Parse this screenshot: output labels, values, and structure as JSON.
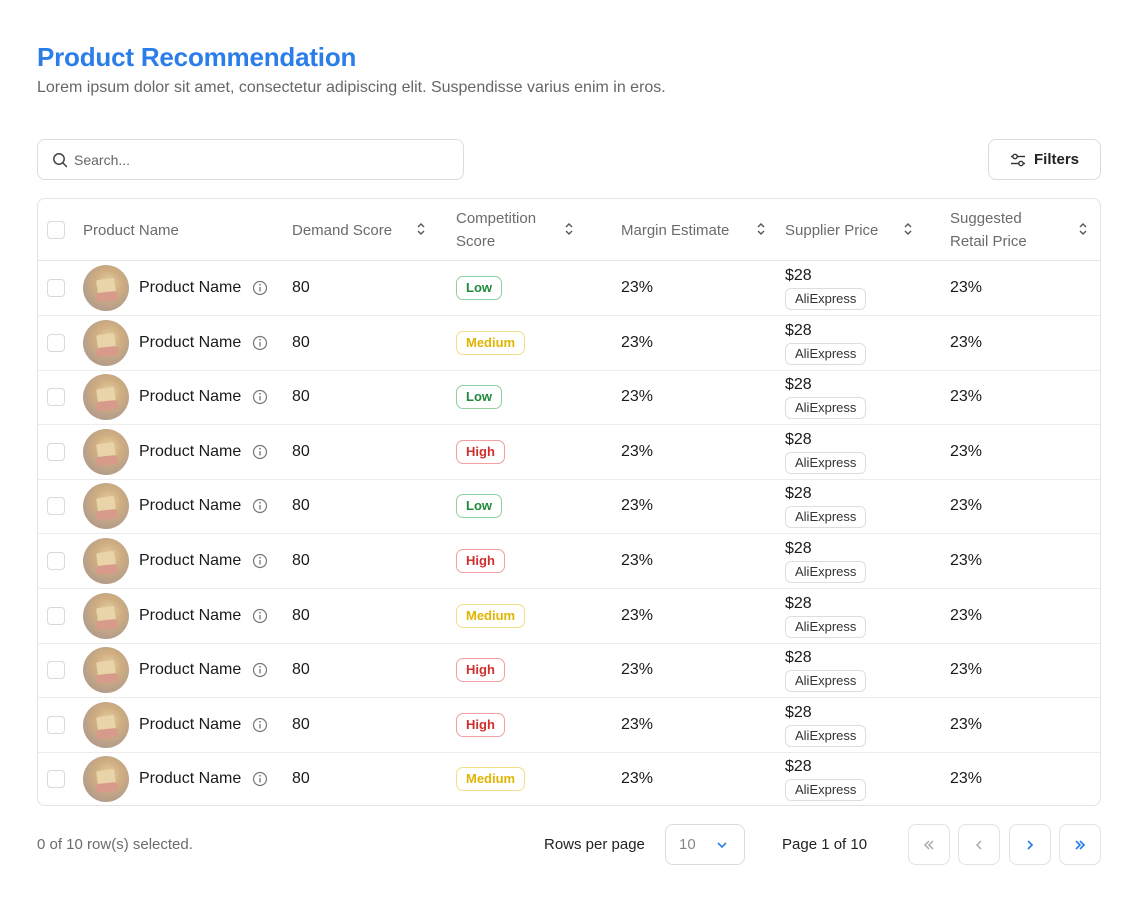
{
  "header": {
    "title": "Product Recommendation",
    "subtitle": "Lorem ipsum dolor sit amet, consectetur adipiscing elit. Suspendisse varius enim in eros."
  },
  "search": {
    "placeholder": "Search..."
  },
  "filters": {
    "label": "Filters"
  },
  "table": {
    "columns": [
      {
        "key": "product_name",
        "label": "Product Name"
      },
      {
        "key": "demand_score",
        "label": "Demand Score"
      },
      {
        "key": "competition_score",
        "label": "Competition\nScore"
      },
      {
        "key": "margin_estimate",
        "label": "Margin Estimate"
      },
      {
        "key": "supplier_price",
        "label": "Supplier Price"
      },
      {
        "key": "suggested_retail_price",
        "label": "Suggested\nRetail Price"
      }
    ],
    "rows": [
      {
        "name": "Product Name",
        "demand": "80",
        "competition": "Low",
        "margin": "23%",
        "price": "$28",
        "supplier": "AliExpress",
        "retail": "23%"
      },
      {
        "name": "Product Name",
        "demand": "80",
        "competition": "Medium",
        "margin": "23%",
        "price": "$28",
        "supplier": "AliExpress",
        "retail": "23%"
      },
      {
        "name": "Product Name",
        "demand": "80",
        "competition": "Low",
        "margin": "23%",
        "price": "$28",
        "supplier": "AliExpress",
        "retail": "23%"
      },
      {
        "name": "Product Name",
        "demand": "80",
        "competition": "High",
        "margin": "23%",
        "price": "$28",
        "supplier": "AliExpress",
        "retail": "23%"
      },
      {
        "name": "Product Name",
        "demand": "80",
        "competition": "Low",
        "margin": "23%",
        "price": "$28",
        "supplier": "AliExpress",
        "retail": "23%"
      },
      {
        "name": "Product Name",
        "demand": "80",
        "competition": "High",
        "margin": "23%",
        "price": "$28",
        "supplier": "AliExpress",
        "retail": "23%"
      },
      {
        "name": "Product Name",
        "demand": "80",
        "competition": "Medium",
        "margin": "23%",
        "price": "$28",
        "supplier": "AliExpress",
        "retail": "23%"
      },
      {
        "name": "Product Name",
        "demand": "80",
        "competition": "High",
        "margin": "23%",
        "price": "$28",
        "supplier": "AliExpress",
        "retail": "23%"
      },
      {
        "name": "Product Name",
        "demand": "80",
        "competition": "High",
        "margin": "23%",
        "price": "$28",
        "supplier": "AliExpress",
        "retail": "23%"
      },
      {
        "name": "Product Name",
        "demand": "80",
        "competition": "Medium",
        "margin": "23%",
        "price": "$28",
        "supplier": "AliExpress",
        "retail": "23%"
      }
    ]
  },
  "footer": {
    "selection": "0 of 10 row(s) selected.",
    "rows_per_page_label": "Rows per page",
    "rows_per_page_value": "10",
    "page_label": "Page 1 of 10"
  },
  "icons": {
    "search": "search-icon",
    "filters": "sliders-icon",
    "sort": "sort-icon",
    "info": "info-icon",
    "chevron_down": "chevron-down-icon",
    "first": "chevrons-left-icon",
    "prev": "chevron-left-icon",
    "next": "chevron-right-icon",
    "last": "chevrons-right-icon"
  },
  "colors": {
    "accent": "#2b7de9",
    "low": "#1f8a3a",
    "medium": "#e0b400",
    "high": "#d12f2f"
  }
}
